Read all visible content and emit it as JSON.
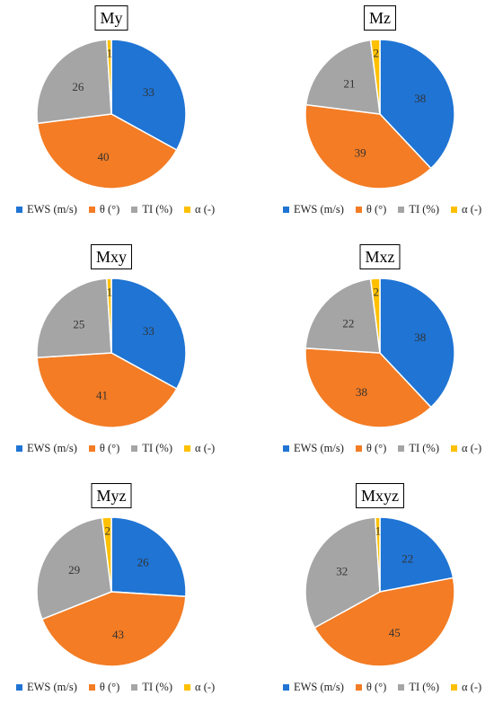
{
  "colors": {
    "ews": "#1f74d4",
    "theta": "#f37c24",
    "ti": "#a5a5a5",
    "alpha": "#ffc000",
    "slice_border": "#ffffff"
  },
  "chart_data": [
    {
      "type": "pie",
      "title": "My",
      "legend_position": "bottom",
      "categories": [
        "EWS (m/s)",
        "θ (°)",
        "TI (%)",
        "α (-)"
      ],
      "values": [
        33,
        40,
        26,
        1
      ],
      "labels": [
        "33",
        "40",
        "26",
        "1"
      ]
    },
    {
      "type": "pie",
      "title": "Mz",
      "legend_position": "bottom",
      "categories": [
        "EWS (m/s)",
        "θ (°)",
        "TI (%)",
        "α (-)"
      ],
      "values": [
        38,
        39,
        21,
        2
      ],
      "labels": [
        "38",
        "39",
        "21",
        "2"
      ]
    },
    {
      "type": "pie",
      "title": "Mxy",
      "legend_position": "bottom",
      "categories": [
        "EWS (m/s)",
        "θ (°)",
        "TI (%)",
        "α (-)"
      ],
      "values": [
        33,
        41,
        25,
        1
      ],
      "labels": [
        "33",
        "41",
        "25",
        "1"
      ]
    },
    {
      "type": "pie",
      "title": "Mxz",
      "legend_position": "bottom",
      "categories": [
        "EWS (m/s)",
        "θ (°)",
        "TI (%)",
        "α (-)"
      ],
      "values": [
        38,
        38,
        22,
        2
      ],
      "labels": [
        "38",
        "38",
        "22",
        "2"
      ]
    },
    {
      "type": "pie",
      "title": "Myz",
      "legend_position": "bottom",
      "categories": [
        "EWS (m/s)",
        "θ (°)",
        "TI (%)",
        "α (-)"
      ],
      "values": [
        26,
        43,
        29,
        2
      ],
      "labels": [
        "26",
        "43",
        "29",
        "2"
      ]
    },
    {
      "type": "pie",
      "title": "Mxyz",
      "legend_position": "bottom",
      "categories": [
        "EWS (m/s)",
        "θ (°)",
        "TI (%)",
        "α (-)"
      ],
      "values": [
        22,
        45,
        32,
        1
      ],
      "labels": [
        "22",
        "45",
        "32",
        "1"
      ]
    }
  ]
}
